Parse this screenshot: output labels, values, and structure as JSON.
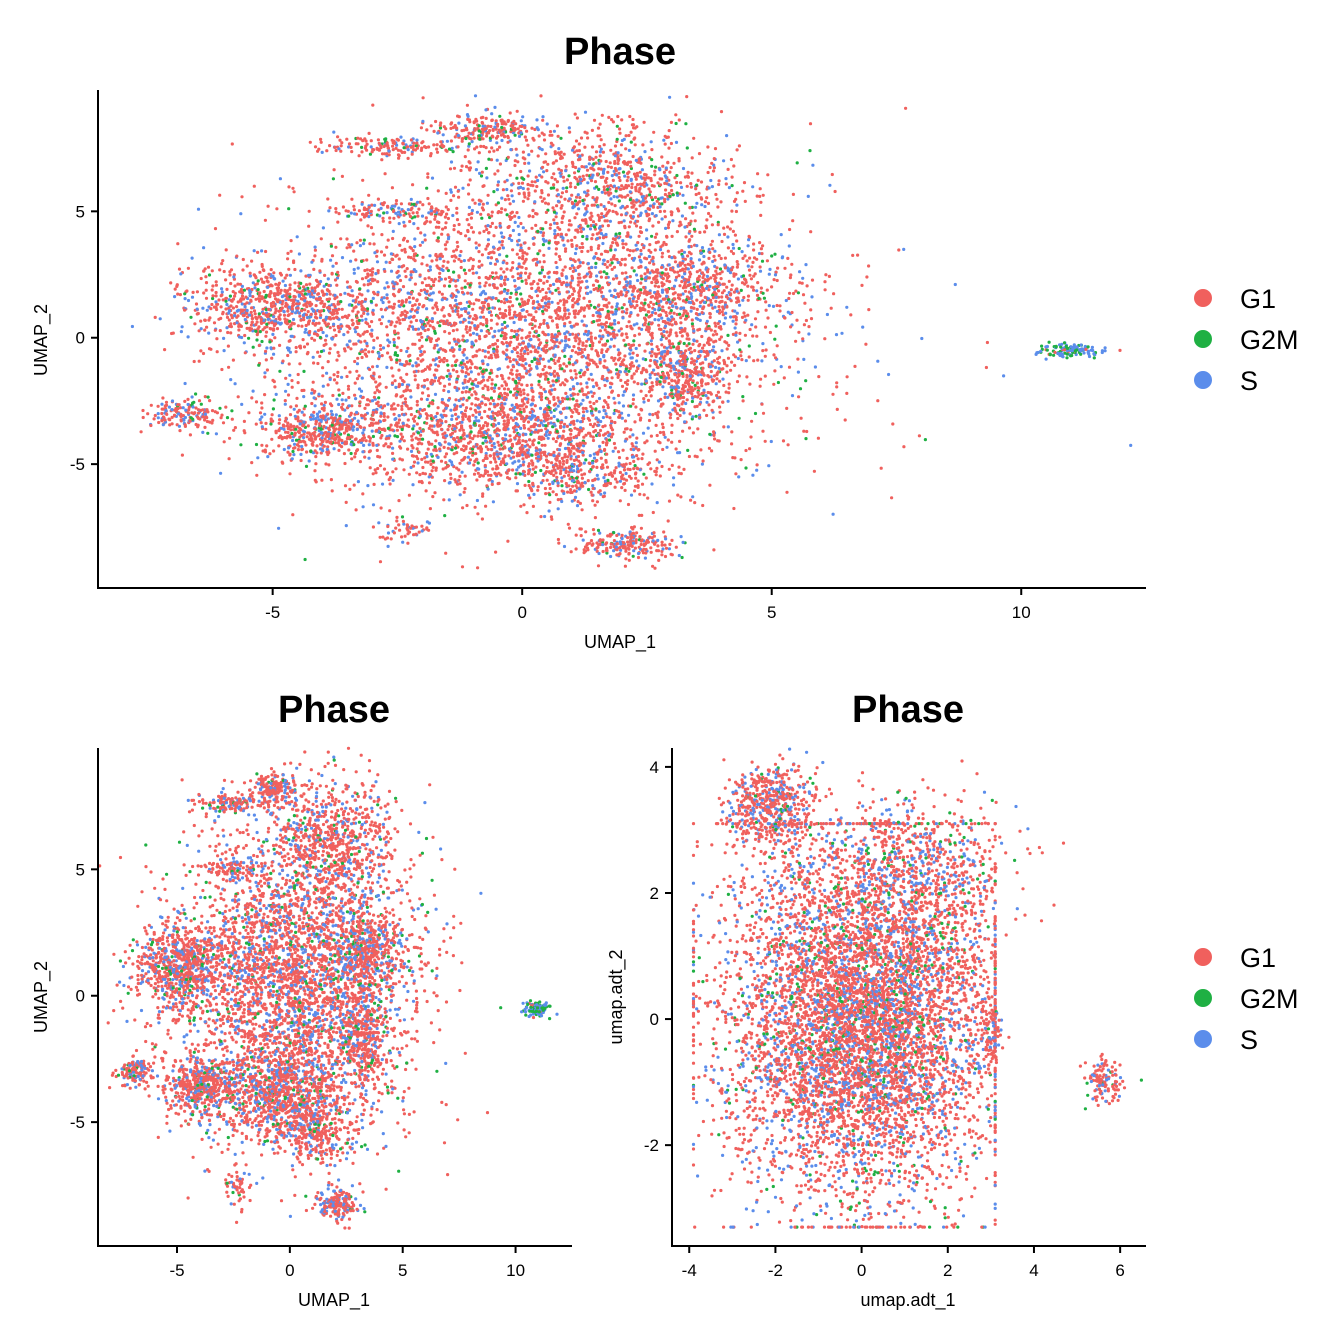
{
  "chart_data": [
    {
      "type": "scatter",
      "title": "Phase",
      "xlabel": "UMAP_1",
      "ylabel": "UMAP_2",
      "xlim": [
        -8.5,
        12.5
      ],
      "ylim": [
        -9.9,
        9.8
      ],
      "xticks": [
        -5,
        0,
        5,
        10
      ],
      "yticks": [
        -5,
        0,
        5
      ],
      "legend": {
        "position": "right",
        "entries": [
          "G1",
          "G2M",
          "S"
        ]
      },
      "series": [
        {
          "name": "G1",
          "color": "#F0605D"
        },
        {
          "name": "G2M",
          "color": "#1FB043"
        },
        {
          "name": "S",
          "color": "#5B8DEB"
        }
      ],
      "clusters": [
        {
          "cx": 0.2,
          "cy": 0.5,
          "sx": 2.6,
          "sy": 3.0,
          "weight": 0.4
        },
        {
          "cx": -4.8,
          "cy": 1.2,
          "sx": 1.0,
          "sy": 0.8,
          "weight": 0.08
        },
        {
          "cx": -3.9,
          "cy": -3.6,
          "sx": 0.8,
          "sy": 0.6,
          "weight": 0.05
        },
        {
          "cx": -0.3,
          "cy": -4.0,
          "sx": 1.4,
          "sy": 1.0,
          "weight": 0.1
        },
        {
          "cx": 1.8,
          "cy": 6.2,
          "sx": 1.3,
          "sy": 1.2,
          "weight": 0.07
        },
        {
          "cx": -0.7,
          "cy": 8.2,
          "sx": 0.5,
          "sy": 0.3,
          "weight": 0.02
        },
        {
          "cx": -2.6,
          "cy": 7.6,
          "sx": 0.8,
          "sy": 0.2,
          "weight": 0.015
        },
        {
          "cx": 3.4,
          "cy": 1.8,
          "sx": 0.9,
          "sy": 0.9,
          "weight": 0.05
        },
        {
          "cx": 3.3,
          "cy": -1.6,
          "sx": 0.4,
          "sy": 0.9,
          "weight": 0.03
        },
        {
          "cx": 2.1,
          "cy": -8.2,
          "sx": 0.5,
          "sy": 0.3,
          "weight": 0.02
        },
        {
          "cx": 1.2,
          "cy": -5.6,
          "sx": 0.7,
          "sy": 0.5,
          "weight": 0.02
        },
        {
          "cx": -6.8,
          "cy": -3.0,
          "sx": 0.4,
          "sy": 0.3,
          "weight": 0.015
        },
        {
          "cx": -2.3,
          "cy": -7.6,
          "sx": 0.3,
          "sy": 0.3,
          "weight": 0.005
        },
        {
          "cx": -2.5,
          "cy": 5.0,
          "sx": 0.6,
          "sy": 0.2,
          "weight": 0.01
        },
        {
          "cx": 11.0,
          "cy": -0.5,
          "sx": 0.3,
          "sy": 0.15,
          "weight": 0.012,
          "g2m": 0.4,
          "s": 0.5
        }
      ],
      "n_points": 9000
    },
    {
      "type": "scatter",
      "title": "Phase",
      "xlabel": "UMAP_1",
      "ylabel": "UMAP_2",
      "xlim": [
        -8.5,
        12.5
      ],
      "ylim": [
        -9.9,
        9.8
      ],
      "xticks": [
        -5,
        0,
        5,
        10
      ],
      "yticks": [
        -5,
        0,
        5
      ],
      "series": [
        {
          "name": "G1",
          "color": "#F0605D"
        },
        {
          "name": "G2M",
          "color": "#1FB043"
        },
        {
          "name": "S",
          "color": "#5B8DEB"
        }
      ],
      "clusters": [
        {
          "cx": 0.2,
          "cy": 0.5,
          "sx": 2.6,
          "sy": 3.0,
          "weight": 0.4
        },
        {
          "cx": -4.8,
          "cy": 1.2,
          "sx": 1.0,
          "sy": 0.8,
          "weight": 0.08
        },
        {
          "cx": -3.9,
          "cy": -3.6,
          "sx": 0.8,
          "sy": 0.6,
          "weight": 0.05
        },
        {
          "cx": -0.3,
          "cy": -4.0,
          "sx": 1.4,
          "sy": 1.0,
          "weight": 0.1
        },
        {
          "cx": 1.8,
          "cy": 6.2,
          "sx": 1.3,
          "sy": 1.2,
          "weight": 0.07
        },
        {
          "cx": -0.7,
          "cy": 8.2,
          "sx": 0.5,
          "sy": 0.3,
          "weight": 0.02
        },
        {
          "cx": -2.6,
          "cy": 7.6,
          "sx": 0.8,
          "sy": 0.2,
          "weight": 0.015
        },
        {
          "cx": 3.4,
          "cy": 1.8,
          "sx": 0.9,
          "sy": 0.9,
          "weight": 0.05
        },
        {
          "cx": 3.3,
          "cy": -1.6,
          "sx": 0.4,
          "sy": 0.9,
          "weight": 0.03
        },
        {
          "cx": 2.1,
          "cy": -8.2,
          "sx": 0.5,
          "sy": 0.3,
          "weight": 0.02
        },
        {
          "cx": 1.2,
          "cy": -5.6,
          "sx": 0.7,
          "sy": 0.5,
          "weight": 0.02
        },
        {
          "cx": -6.8,
          "cy": -3.0,
          "sx": 0.4,
          "sy": 0.3,
          "weight": 0.015
        },
        {
          "cx": -2.3,
          "cy": -7.6,
          "sx": 0.3,
          "sy": 0.3,
          "weight": 0.005
        },
        {
          "cx": -2.5,
          "cy": 5.0,
          "sx": 0.6,
          "sy": 0.2,
          "weight": 0.01
        },
        {
          "cx": 11.0,
          "cy": -0.5,
          "sx": 0.3,
          "sy": 0.15,
          "weight": 0.012,
          "g2m": 0.4,
          "s": 0.5
        }
      ],
      "n_points": 8000
    },
    {
      "type": "scatter",
      "title": "Phase",
      "xlabel": "umap.adt_1",
      "ylabel": "umap.adt_2",
      "xlim": [
        -4.4,
        6.6
      ],
      "ylim": [
        -3.6,
        4.3
      ],
      "xticks": [
        -4,
        -2,
        0,
        2,
        4,
        6
      ],
      "yticks": [
        -2,
        0,
        2,
        4
      ],
      "legend": {
        "position": "right",
        "entries": [
          "G1",
          "G2M",
          "S"
        ]
      },
      "series": [
        {
          "name": "G1",
          "color": "#F0605D"
        },
        {
          "name": "G2M",
          "color": "#1FB043"
        },
        {
          "name": "S",
          "color": "#5B8DEB"
        }
      ],
      "clusters": [
        {
          "cx": 0.0,
          "cy": 0.0,
          "sx": 1.6,
          "sy": 1.4,
          "weight": 0.82,
          "clip": [
            -3.9,
            3.1,
            -3.3,
            3.1
          ]
        },
        {
          "cx": -2.1,
          "cy": 3.4,
          "sx": 0.5,
          "sy": 0.35,
          "weight": 0.07
        },
        {
          "cx": 1.2,
          "cy": 2.4,
          "sx": 1.1,
          "sy": 0.6,
          "weight": 0.08
        },
        {
          "cx": 5.6,
          "cy": -1.0,
          "sx": 0.2,
          "sy": 0.2,
          "weight": 0.015
        },
        {
          "cx": 3.0,
          "cy": -0.3,
          "sx": 0.15,
          "sy": 0.3,
          "weight": 0.01
        }
      ],
      "n_points": 8000
    }
  ]
}
